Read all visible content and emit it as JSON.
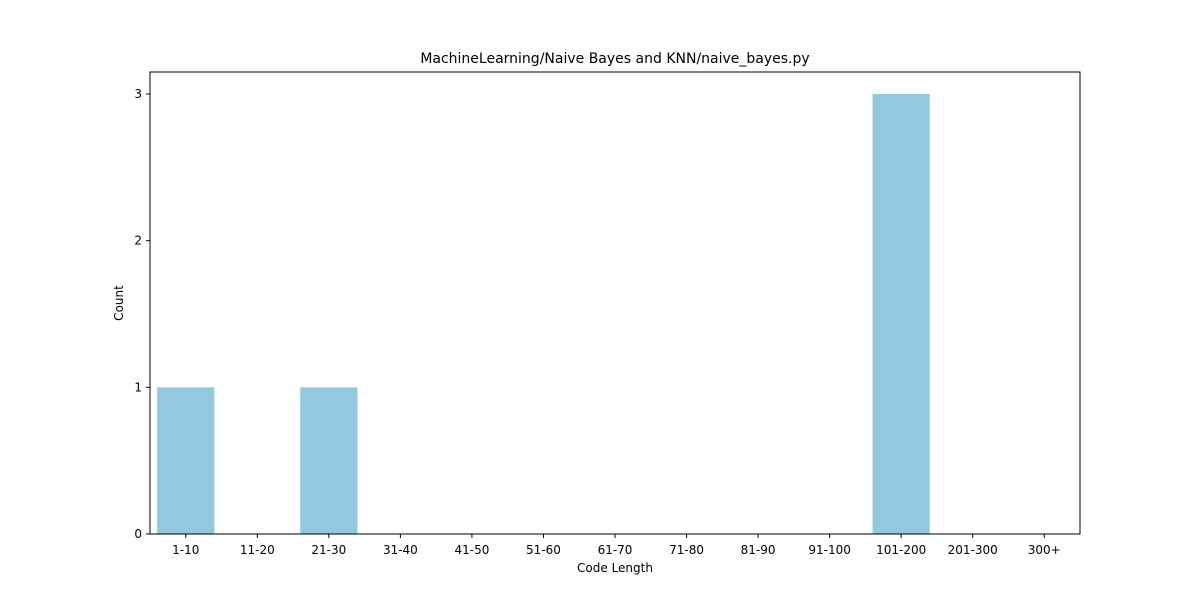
{
  "chart_data": {
    "type": "bar",
    "title": "MachineLearning/Naive Bayes and KNN/naive_bayes.py",
    "xlabel": "Code Length",
    "ylabel": "Count",
    "categories": [
      "1-10",
      "11-20",
      "21-30",
      "31-40",
      "41-50",
      "51-60",
      "61-70",
      "71-80",
      "81-90",
      "91-100",
      "101-200",
      "201-300",
      "300+"
    ],
    "values": [
      1,
      0,
      1,
      0,
      0,
      0,
      0,
      0,
      0,
      0,
      3,
      0,
      0
    ],
    "ylim": [
      0,
      3.15
    ],
    "yticks": [
      "0",
      "1",
      "2",
      "3"
    ],
    "bar_color": "#92c9df",
    "grid": false,
    "legend": "none"
  }
}
